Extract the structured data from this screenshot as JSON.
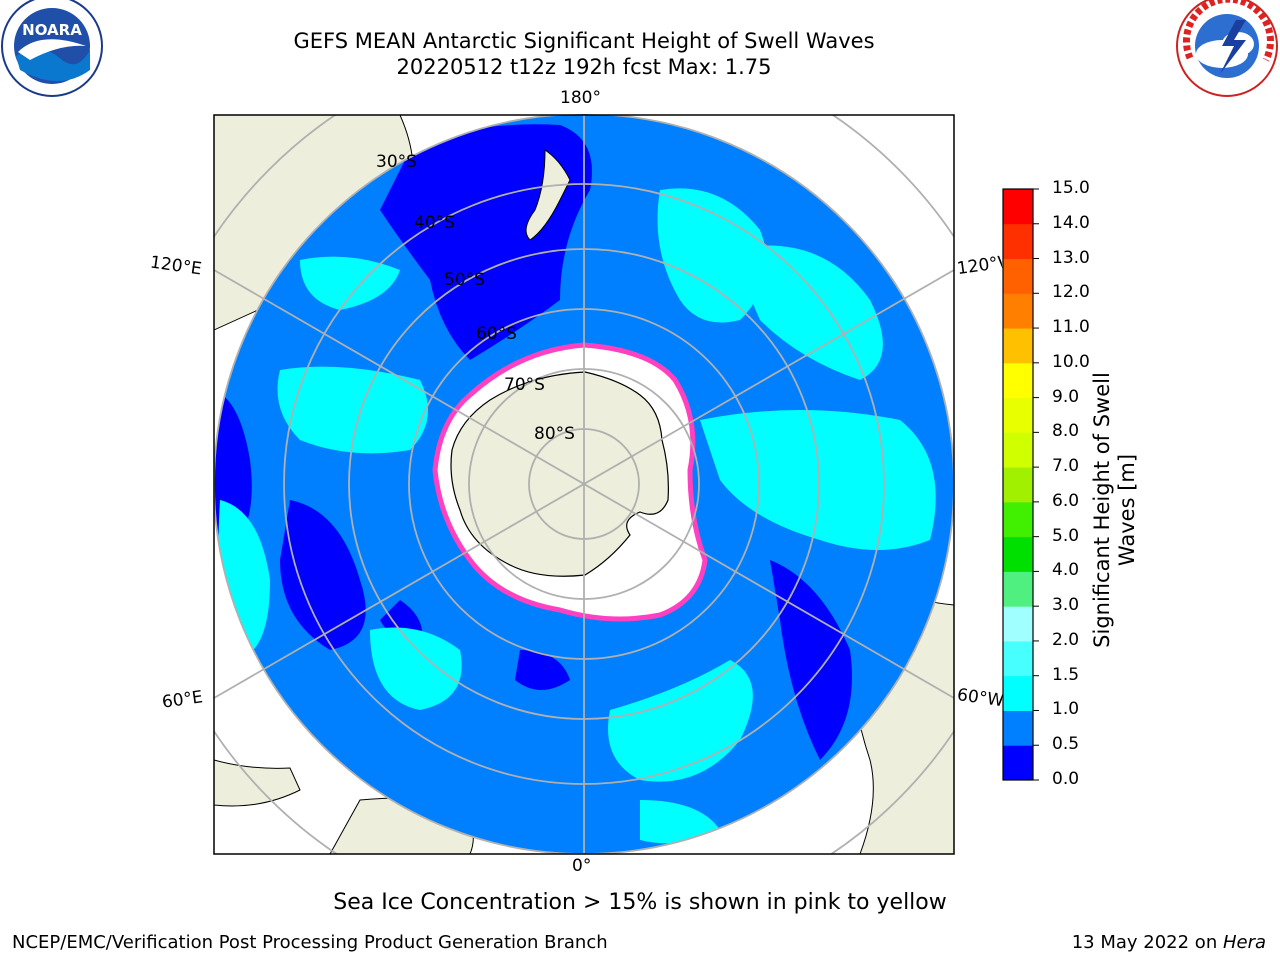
{
  "title_line1": "GEFS MEAN Antarctic Significant Height of Swell Waves",
  "title_line2": "20220512 t12z 192h fcst   Max: 1.75",
  "logos": {
    "left": "noaa-logo",
    "left_text": "NOARA",
    "right": "nws-logo",
    "right_text": "NATIONAL WEATHER SERVICE"
  },
  "map": {
    "projection": "south-polar-stereographic",
    "longitude_labels": {
      "top": "180°",
      "bottom": "0°",
      "left_upper": "120°E",
      "left_lower": "60°E",
      "right_upper": "120°W",
      "right_lower": "60°W"
    },
    "latitude_labels": [
      "30°S",
      "40°S",
      "50°S",
      "60°S",
      "70°S",
      "80°S"
    ]
  },
  "colorbar": {
    "label_line1": "Significant Height of Swell",
    "label_line2": "Waves [m]",
    "ticks": [
      "0.0",
      "0.5",
      "1.0",
      "1.5",
      "2.0",
      "3.0",
      "4.0",
      "5.0",
      "6.0",
      "7.0",
      "8.0",
      "9.0",
      "10.0",
      "11.0",
      "12.0",
      "13.0",
      "14.0",
      "15.0"
    ],
    "colors": [
      "#0000ff",
      "#0080ff",
      "#00ffff",
      "#48ffff",
      "#a0ffff",
      "#50f080",
      "#00e000",
      "#40f000",
      "#a0f000",
      "#d0ff00",
      "#e8ff00",
      "#ffff00",
      "#ffc000",
      "#ff8000",
      "#ff6000",
      "#ff3000",
      "#ff0000"
    ]
  },
  "note": "Sea Ice Concentration > 15% is shown in pink to yellow",
  "footer_left": "NCEP/EMC/Verification Post Processing Product Generation Branch",
  "footer_right_prefix": "13 May 2022 on ",
  "footer_right_host": "Hera"
}
